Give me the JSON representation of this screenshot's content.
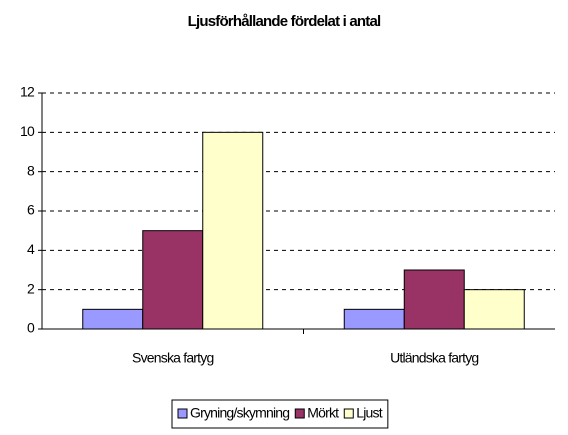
{
  "chart_data": {
    "type": "bar",
    "title": "Ljusförhållande fördelat i antal",
    "categories": [
      "Svenska fartyg",
      "Utländska fartyg"
    ],
    "series": [
      {
        "name": "Gryning/skymning",
        "color": "#9999ff",
        "values": [
          1,
          1
        ]
      },
      {
        "name": "Mörkt",
        "color": "#993366",
        "values": [
          5,
          3
        ]
      },
      {
        "name": "Ljust",
        "color": "#ffffcc",
        "values": [
          10,
          2
        ]
      }
    ],
    "ylim": [
      0,
      12
    ],
    "yticks": [
      0,
      2,
      4,
      6,
      8,
      10,
      12
    ],
    "grid": true,
    "legend": "bottom"
  }
}
